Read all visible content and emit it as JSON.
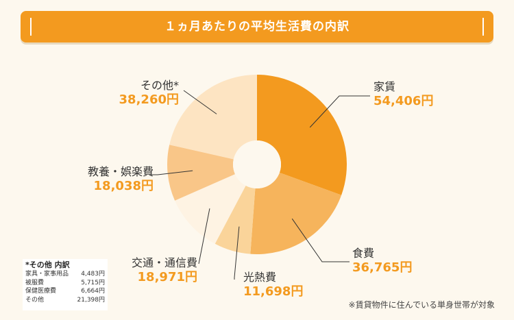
{
  "header": {
    "title": "１ヵ月あたりの平均生活費の内訳"
  },
  "chart_data": {
    "type": "pie",
    "title": "１ヵ月あたりの平均生活費の内訳",
    "slices": [
      {
        "name": "家賃",
        "value": 54406,
        "label": "54,406円",
        "color": "#f39a1f"
      },
      {
        "name": "食費",
        "value": 36765,
        "label": "36,765円",
        "color": "#f6b45c"
      },
      {
        "name": "光熱費",
        "value": 11698,
        "label": "11,698円",
        "color": "#fad49a"
      },
      {
        "name": "交通・通信費",
        "value": 18971,
        "label": "18,971円",
        "color": "#fef3e3"
      },
      {
        "name": "教養・娯楽費",
        "value": 18038,
        "label": "18,038円",
        "color": "#f9c688"
      },
      {
        "name": "その他*",
        "value": 38260,
        "label": "38,260円",
        "color": "#fde4c2"
      }
    ]
  },
  "breakdown": {
    "title": "*その他 内訳",
    "rows": [
      {
        "name": "家具・家事用品",
        "value": "4,483円"
      },
      {
        "name": "被服費",
        "value": "5,715円"
      },
      {
        "name": "保健医療費",
        "value": "6,664円"
      },
      {
        "name": "その他",
        "value": "21,398円"
      }
    ]
  },
  "note": "※賃貸物件に住んでいる単身世帯が対象"
}
